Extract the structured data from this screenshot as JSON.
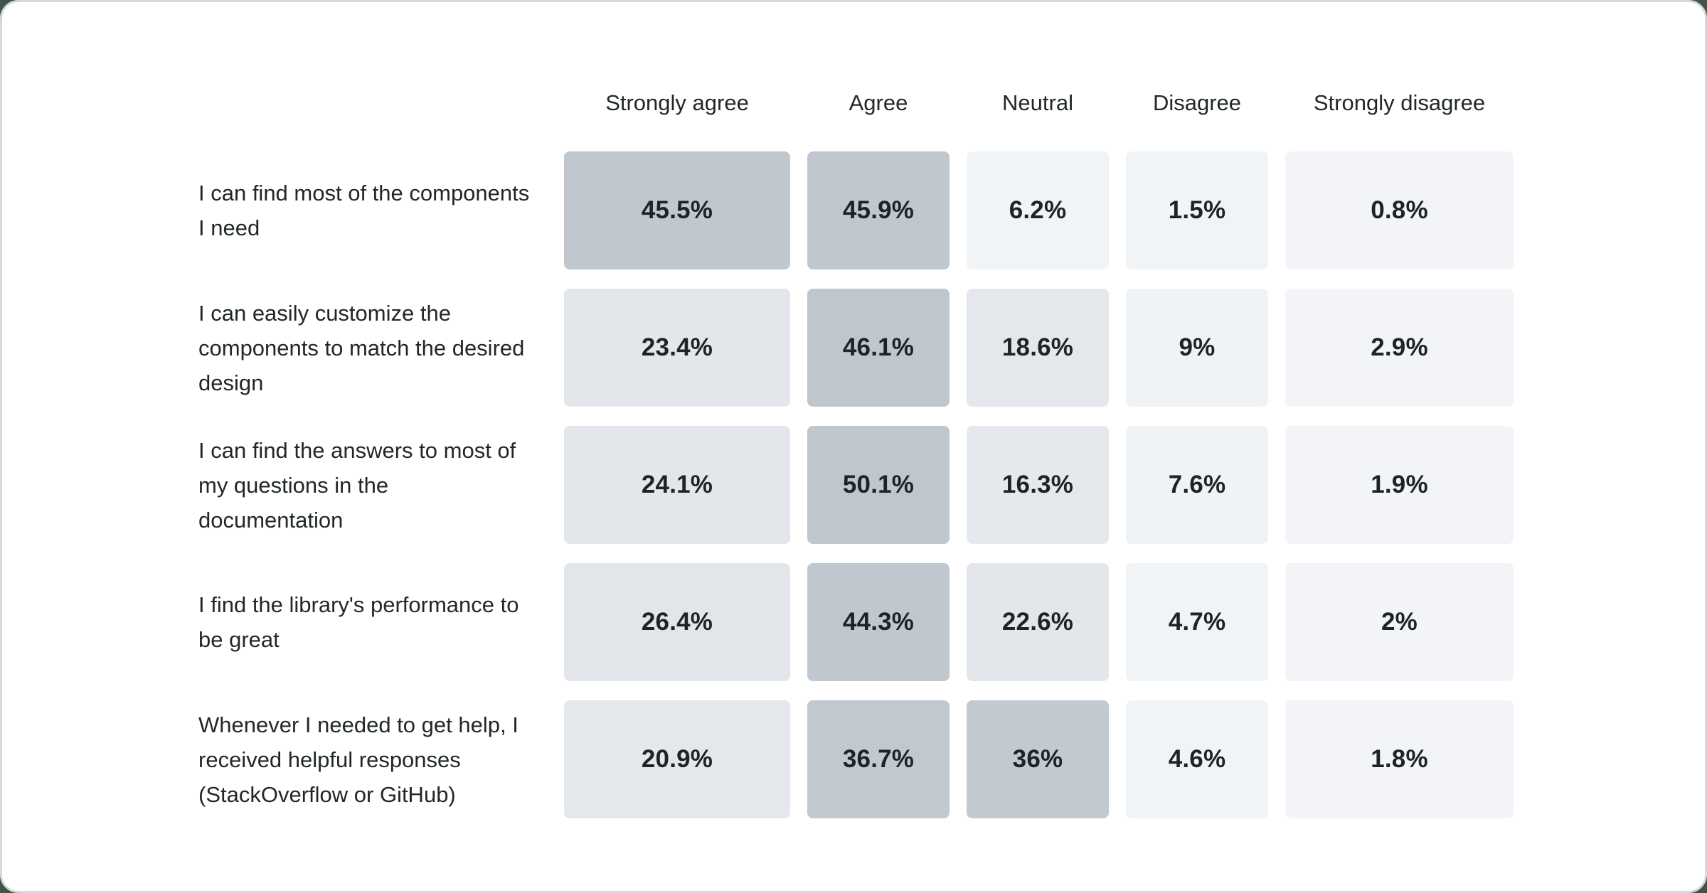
{
  "chart_data": {
    "type": "heatmap",
    "title": "",
    "legend": "none",
    "grid": false,
    "columns": [
      "Strongly agree",
      "Agree",
      "Neutral",
      "Disagree",
      "Strongly disagree"
    ],
    "rows": [
      {
        "label": "I can find most of the components I need",
        "values": [
          45.5,
          45.9,
          6.2,
          1.5,
          0.8
        ],
        "display": [
          "45.5%",
          "45.9%",
          "6.2%",
          "1.5%",
          "0.8%"
        ],
        "colors": [
          "#c1c7cf",
          "#c1c7cf",
          "#f1f4f7",
          "#f1f4f7",
          "#f2f4f7"
        ]
      },
      {
        "label": "I can easily customize the components to match the desired design",
        "values": [
          23.4,
          46.1,
          18.6,
          9,
          2.9
        ],
        "display": [
          "23.4%",
          "46.1%",
          "18.6%",
          "9%",
          "2.9%"
        ],
        "colors": [
          "#e3e7ec",
          "#c0c6ce",
          "#e4e8ed",
          "#f0f3f6",
          "#f2f4f7"
        ]
      },
      {
        "label": "I can find the answers to most of my questions in the documentation",
        "values": [
          24.1,
          50.1,
          16.3,
          7.6,
          1.9
        ],
        "display": [
          "24.1%",
          "50.1%",
          "16.3%",
          "7.6%",
          "1.9%"
        ],
        "colors": [
          "#e3e7ec",
          "#c0c6ce",
          "#e5e9ed",
          "#f0f3f6",
          "#f2f4f7"
        ]
      },
      {
        "label": "I find the library's performance to be great",
        "values": [
          26.4,
          44.3,
          22.6,
          4.7,
          2
        ],
        "display": [
          "26.4%",
          "44.3%",
          "22.6%",
          "4.7%",
          "2%"
        ],
        "colors": [
          "#e2e6eb",
          "#c1c7cf",
          "#e3e7ec",
          "#f1f4f7",
          "#f2f4f7"
        ]
      },
      {
        "label": "Whenever I needed to get help, I received helpful responses (StackOverflow or GitHub)",
        "values": [
          20.9,
          36.7,
          36,
          4.6,
          1.8
        ],
        "display": [
          "20.9%",
          "36.7%",
          "36%",
          "4.6%",
          "1.8%"
        ],
        "colors": [
          "#e4e8ec",
          "#c2c8d0",
          "#c3c9d1",
          "#f1f4f7",
          "#f2f4f7"
        ]
      }
    ],
    "palette": {
      "cell_low": "#f2f5f8",
      "cell_high": "#bfc5ce",
      "text": "#21272a",
      "card_border": "#d4d9dd",
      "page_background": "#3f5548"
    }
  }
}
